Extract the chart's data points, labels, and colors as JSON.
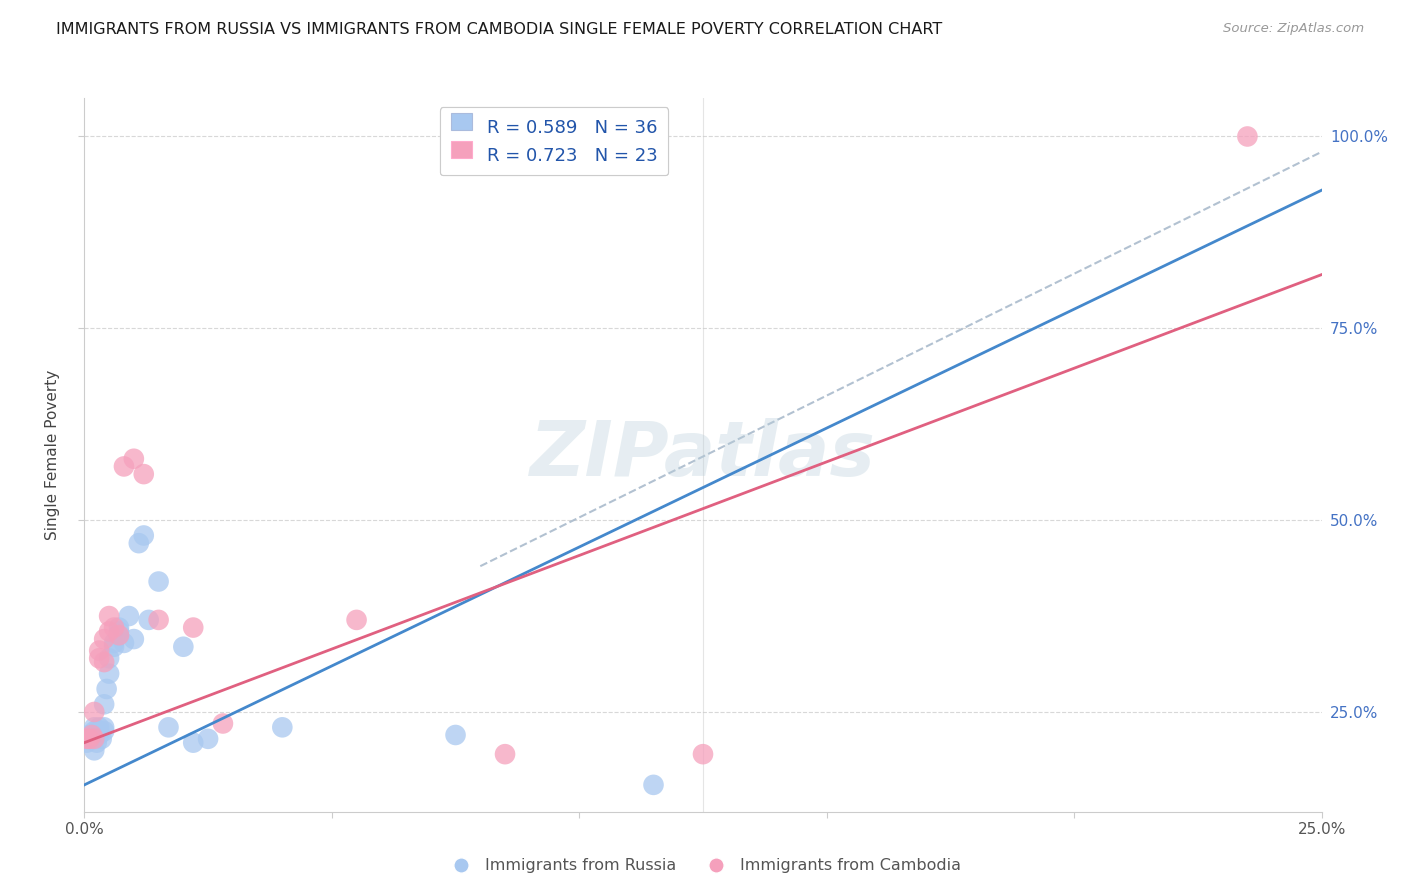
{
  "title": "IMMIGRANTS FROM RUSSIA VS IMMIGRANTS FROM CAMBODIA SINGLE FEMALE POVERTY CORRELATION CHART",
  "source": "Source: ZipAtlas.com",
  "ylabel": "Single Female Poverty",
  "watermark": "ZIPatlas",
  "legend_label_russia": "Immigrants from Russia",
  "legend_label_cambodia": "Immigrants from Cambodia",
  "russia_color": "#a8c8f0",
  "cambodia_color": "#f5a0bc",
  "russia_line_color": "#4488cc",
  "cambodia_line_color": "#e06080",
  "dashed_color": "#aabbcc",
  "xlim": [
    0.0,
    0.25
  ],
  "ylim": [
    0.12,
    1.05
  ],
  "russia_line_pts": [
    [
      0.0,
      0.155
    ],
    [
      0.25,
      0.93
    ]
  ],
  "cambodia_line_pts": [
    [
      0.0,
      0.21
    ],
    [
      0.25,
      0.82
    ]
  ],
  "dashed_line_pts": [
    [
      0.08,
      0.44
    ],
    [
      0.25,
      0.98
    ]
  ],
  "russia_scatter": [
    [
      0.0005,
      0.21
    ],
    [
      0.001,
      0.215
    ],
    [
      0.001,
      0.22
    ],
    [
      0.0015,
      0.215
    ],
    [
      0.002,
      0.2
    ],
    [
      0.002,
      0.225
    ],
    [
      0.002,
      0.23
    ],
    [
      0.0025,
      0.21
    ],
    [
      0.003,
      0.22
    ],
    [
      0.003,
      0.225
    ],
    [
      0.003,
      0.23
    ],
    [
      0.0035,
      0.215
    ],
    [
      0.004,
      0.23
    ],
    [
      0.004,
      0.225
    ],
    [
      0.004,
      0.26
    ],
    [
      0.0045,
      0.28
    ],
    [
      0.005,
      0.3
    ],
    [
      0.005,
      0.32
    ],
    [
      0.006,
      0.335
    ],
    [
      0.006,
      0.34
    ],
    [
      0.007,
      0.355
    ],
    [
      0.007,
      0.36
    ],
    [
      0.008,
      0.34
    ],
    [
      0.009,
      0.375
    ],
    [
      0.01,
      0.345
    ],
    [
      0.011,
      0.47
    ],
    [
      0.012,
      0.48
    ],
    [
      0.013,
      0.37
    ],
    [
      0.015,
      0.42
    ],
    [
      0.017,
      0.23
    ],
    [
      0.02,
      0.335
    ],
    [
      0.022,
      0.21
    ],
    [
      0.025,
      0.215
    ],
    [
      0.04,
      0.23
    ],
    [
      0.075,
      0.22
    ],
    [
      0.115,
      0.155
    ]
  ],
  "cambodia_scatter": [
    [
      0.0005,
      0.215
    ],
    [
      0.001,
      0.215
    ],
    [
      0.0015,
      0.22
    ],
    [
      0.002,
      0.215
    ],
    [
      0.002,
      0.25
    ],
    [
      0.003,
      0.32
    ],
    [
      0.003,
      0.33
    ],
    [
      0.004,
      0.315
    ],
    [
      0.004,
      0.345
    ],
    [
      0.005,
      0.355
    ],
    [
      0.005,
      0.375
    ],
    [
      0.006,
      0.36
    ],
    [
      0.007,
      0.35
    ],
    [
      0.008,
      0.57
    ],
    [
      0.01,
      0.58
    ],
    [
      0.012,
      0.56
    ],
    [
      0.015,
      0.37
    ],
    [
      0.022,
      0.36
    ],
    [
      0.028,
      0.235
    ],
    [
      0.055,
      0.37
    ],
    [
      0.085,
      0.195
    ],
    [
      0.125,
      0.195
    ],
    [
      0.235,
      1.0
    ]
  ],
  "background_color": "#ffffff",
  "grid_color": "#d8d8d8"
}
